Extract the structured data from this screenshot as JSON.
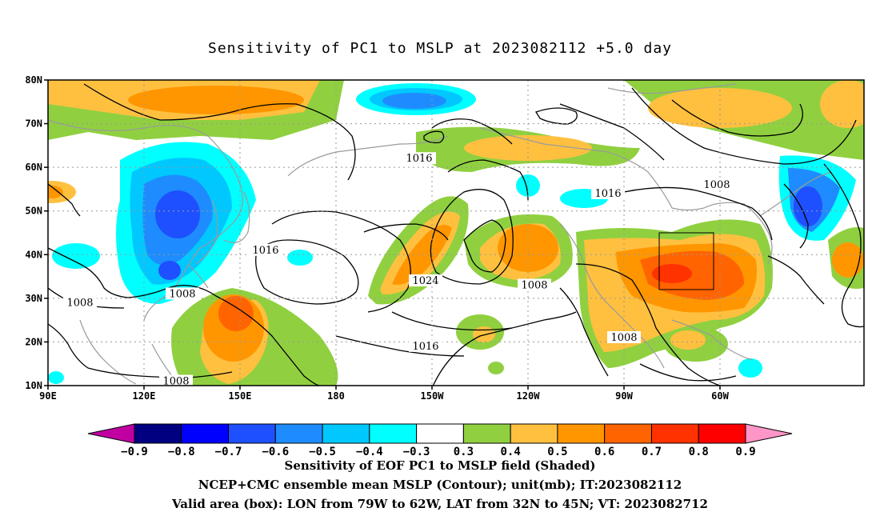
{
  "title": "Sensitivity of PC1 to MSLP at 2023082112 +5.0 day",
  "lat_labels": [
    "80N",
    "70N",
    "60N",
    "50N",
    "40N",
    "30N",
    "20N",
    "10N"
  ],
  "lon_labels": [
    "90E",
    "120E",
    "150E",
    "180",
    "150W",
    "120W",
    "90W",
    "60W"
  ],
  "contour_labels": [
    {
      "text": "1016",
      "lon": "154W",
      "lat": "62N"
    },
    {
      "text": "1016",
      "lon": "158E",
      "lat": "41N"
    },
    {
      "text": "1024",
      "lon": "152W",
      "lat": "34N"
    },
    {
      "text": "1016",
      "lon": "152W",
      "lat": "19N"
    },
    {
      "text": "1008",
      "lon": "118W",
      "lat": "33N"
    },
    {
      "text": "1008",
      "lon": "90W",
      "lat": "21N"
    },
    {
      "text": "1016",
      "lon": "95W",
      "lat": "54N"
    },
    {
      "text": "1008",
      "lon": "61W",
      "lat": "56N"
    },
    {
      "text": "1008",
      "lon": "100E",
      "lat": "29N"
    },
    {
      "text": "1008",
      "lon": "132E",
      "lat": "31N"
    },
    {
      "text": "1008",
      "lon": "130E",
      "lat": "11N"
    }
  ],
  "colorbar": {
    "labels": [
      "−0.9",
      "−0.8",
      "−0.7",
      "−0.6",
      "−0.5",
      "−0.4",
      "−0.3",
      "0.3",
      "0.4",
      "0.5",
      "0.6",
      "0.7",
      "0.8",
      "0.9"
    ],
    "colors": [
      "#c000a0",
      "#000080",
      "#0000ff",
      "#1e50ff",
      "#1e8cff",
      "#00c8ff",
      "#00ffff",
      "#ffffff",
      "#90d040",
      "#ffc040",
      "#ff9600",
      "#ff6400",
      "#ff3200",
      "#ff0000",
      "#ff96c8"
    ]
  },
  "caption_lines": [
    "Sensitivity of EOF PC1 to MSLP field (Shaded)",
    "NCEP+CMC ensemble mean MSLP (Contour); unit(mb); IT:2023082112",
    "Valid area (box): LON from 79W to 62W, LAT from 32N to 45N; VT: 2023082712"
  ],
  "valid_box": {
    "lon_min": -79,
    "lon_max": -62,
    "lat_min": 32,
    "lat_max": 45
  }
}
